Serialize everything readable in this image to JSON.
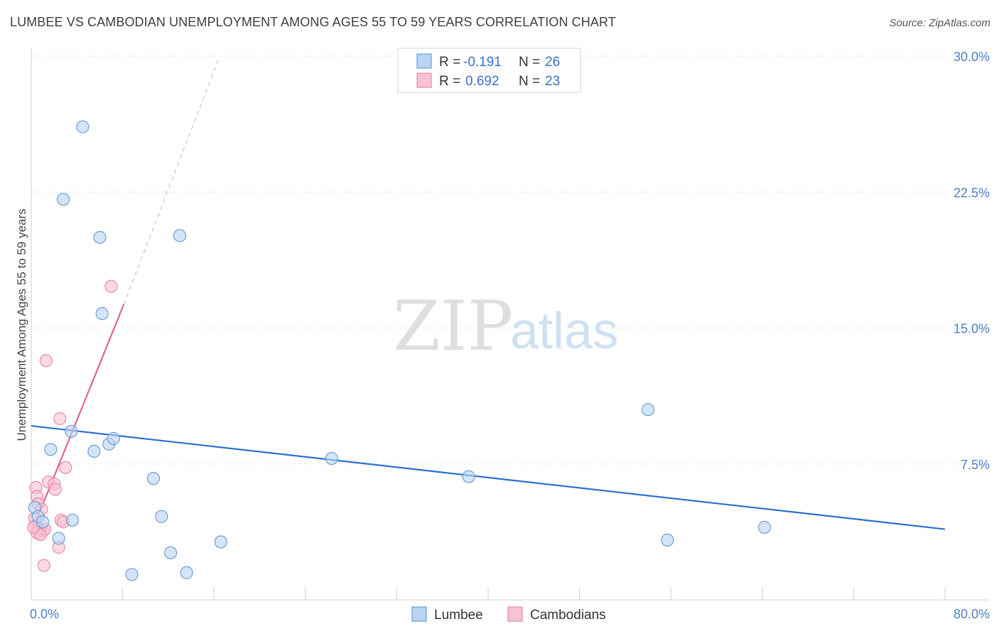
{
  "title": "LUMBEE VS CAMBODIAN UNEMPLOYMENT AMONG AGES 55 TO 59 YEARS CORRELATION CHART",
  "source": "Source: ZipAtlas.com",
  "watermark": {
    "zip": "ZIP",
    "atlas": "atlas"
  },
  "colors": {
    "lumbee_fill": "#b9d3f2",
    "lumbee_stroke": "#6a9fd8",
    "lumbee_line": "#2d6fd0",
    "cambodian_fill": "#f8c2d2",
    "cambodian_stroke": "#e98aa8",
    "cambodian_line": "#e2638f",
    "grid": "#e6e6e6",
    "tick_text": "#4a7fc6"
  },
  "legend": {
    "rows": [
      {
        "r_label": "R = ",
        "r_value": "-0.191",
        "n_label": "N = ",
        "n_value": "26"
      },
      {
        "r_label": "R = ",
        "r_value": "0.692",
        "n_label": "N = ",
        "n_value": "23"
      }
    ]
  },
  "chart_data": {
    "type": "scatter",
    "title": "LUMBEE VS CAMBODIAN UNEMPLOYMENT AMONG AGES 55 TO 59 YEARS CORRELATION CHART",
    "xlabel": "",
    "ylabel": "Unemployment Among Ages 55 to 59 years",
    "xlim": [
      0,
      80
    ],
    "ylim": [
      0,
      30
    ],
    "x_tick_labels": [
      "0.0%",
      "80.0%"
    ],
    "y_ticks": [
      7.5,
      15.0,
      22.5,
      30.0
    ],
    "y_tick_labels": [
      "7.5%",
      "15.0%",
      "22.5%",
      "30.0%"
    ],
    "grid": true,
    "legend_position": "top-center",
    "series": [
      {
        "name": "Lumbee",
        "points": [
          {
            "x": 4.5,
            "y": 26.1
          },
          {
            "x": 2.8,
            "y": 22.1
          },
          {
            "x": 6.0,
            "y": 20.0
          },
          {
            "x": 13.0,
            "y": 20.1
          },
          {
            "x": 6.2,
            "y": 15.8
          },
          {
            "x": 54.0,
            "y": 10.5
          },
          {
            "x": 3.5,
            "y": 9.3
          },
          {
            "x": 1.7,
            "y": 8.3
          },
          {
            "x": 5.5,
            "y": 8.2
          },
          {
            "x": 6.8,
            "y": 8.6
          },
          {
            "x": 7.2,
            "y": 8.9
          },
          {
            "x": 26.3,
            "y": 7.8
          },
          {
            "x": 38.3,
            "y": 6.8
          },
          {
            "x": 10.7,
            "y": 6.7
          },
          {
            "x": 0.3,
            "y": 5.1
          },
          {
            "x": 0.6,
            "y": 4.6
          },
          {
            "x": 1.0,
            "y": 4.3
          },
          {
            "x": 3.6,
            "y": 4.4
          },
          {
            "x": 11.4,
            "y": 4.6
          },
          {
            "x": 64.2,
            "y": 4.0
          },
          {
            "x": 2.4,
            "y": 3.4
          },
          {
            "x": 16.6,
            "y": 3.2
          },
          {
            "x": 55.7,
            "y": 3.3
          },
          {
            "x": 12.2,
            "y": 2.6
          },
          {
            "x": 8.8,
            "y": 1.4
          },
          {
            "x": 13.6,
            "y": 1.5
          }
        ],
        "trend": {
          "x": [
            0,
            80
          ],
          "y": [
            9.6,
            3.9
          ]
        }
      },
      {
        "name": "Cambodians",
        "points": [
          {
            "x": 7.0,
            "y": 17.3
          },
          {
            "x": 1.3,
            "y": 13.2
          },
          {
            "x": 2.5,
            "y": 10.0
          },
          {
            "x": 3.0,
            "y": 7.3
          },
          {
            "x": 1.5,
            "y": 6.5
          },
          {
            "x": 2.0,
            "y": 6.4
          },
          {
            "x": 2.1,
            "y": 6.1
          },
          {
            "x": 0.4,
            "y": 6.2
          },
          {
            "x": 0.5,
            "y": 5.7
          },
          {
            "x": 0.6,
            "y": 5.3
          },
          {
            "x": 0.9,
            "y": 5.0
          },
          {
            "x": 0.3,
            "y": 4.5
          },
          {
            "x": 2.6,
            "y": 4.4
          },
          {
            "x": 2.8,
            "y": 4.3
          },
          {
            "x": 0.4,
            "y": 4.1
          },
          {
            "x": 0.7,
            "y": 3.9
          },
          {
            "x": 1.0,
            "y": 3.8
          },
          {
            "x": 1.2,
            "y": 3.9
          },
          {
            "x": 0.5,
            "y": 3.7
          },
          {
            "x": 0.8,
            "y": 3.6
          },
          {
            "x": 2.4,
            "y": 2.9
          },
          {
            "x": 1.1,
            "y": 1.9
          },
          {
            "x": 0.2,
            "y": 4.0
          }
        ],
        "trend": {
          "x": [
            0,
            8.1
          ],
          "y": [
            3.7,
            16.3
          ]
        },
        "trend_extension": {
          "x": [
            8.1,
            16.5
          ],
          "y": [
            16.3,
            30.0
          ]
        }
      }
    ]
  },
  "bottom_legend": [
    {
      "name": "Lumbee"
    },
    {
      "name": "Cambodians"
    }
  ]
}
